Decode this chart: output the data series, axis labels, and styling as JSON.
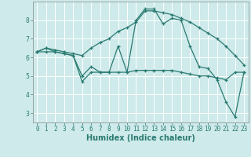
{
  "xlabel": "Humidex (Indice chaleur)",
  "bg_color": "#ceeaea",
  "grid_color": "#ffffff",
  "line_color": "#2a7a72",
  "x_values": [
    0,
    1,
    2,
    3,
    4,
    5,
    6,
    7,
    8,
    9,
    10,
    11,
    12,
    13,
    14,
    15,
    16,
    17,
    18,
    19,
    20,
    21,
    22,
    23
  ],
  "series1": [
    6.3,
    6.5,
    6.3,
    6.2,
    6.1,
    5.0,
    5.5,
    5.2,
    5.2,
    6.6,
    5.2,
    8.0,
    8.6,
    8.6,
    7.8,
    8.1,
    8.0,
    6.6,
    5.5,
    5.4,
    4.8,
    3.6,
    2.8,
    5.2
  ],
  "series2": [
    6.3,
    6.3,
    6.3,
    6.2,
    6.1,
    4.7,
    5.2,
    5.2,
    5.2,
    5.2,
    5.2,
    5.3,
    5.3,
    5.3,
    5.3,
    5.3,
    5.2,
    5.1,
    5.0,
    5.0,
    4.9,
    4.8,
    5.2,
    5.2
  ],
  "series3": [
    6.3,
    6.5,
    6.4,
    6.3,
    6.2,
    6.1,
    6.5,
    6.8,
    7.0,
    7.4,
    7.6,
    7.9,
    8.5,
    8.5,
    8.4,
    8.3,
    8.1,
    7.9,
    7.6,
    7.3,
    7.0,
    6.6,
    6.1,
    5.6
  ],
  "ylim": [
    2.5,
    9.0
  ],
  "yticks": [
    3,
    4,
    5,
    6,
    7,
    8
  ],
  "xtick_labels": [
    "0",
    "1",
    "2",
    "3",
    "4",
    "5",
    "6",
    "7",
    "8",
    "9",
    "10",
    "11",
    "12",
    "13",
    "14",
    "15",
    "16",
    "17",
    "18",
    "19",
    "20",
    "21",
    "22",
    "23"
  ]
}
